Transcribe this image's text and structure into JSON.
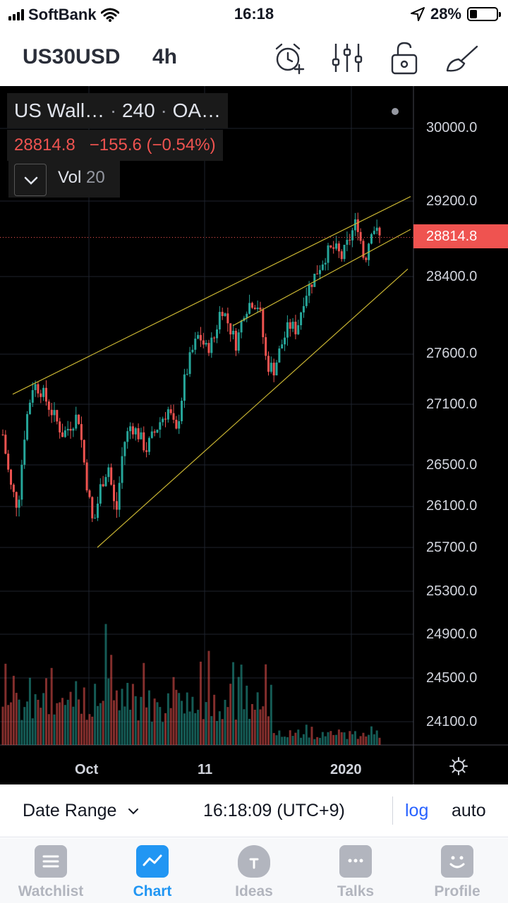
{
  "status_bar": {
    "carrier": "SoftBank",
    "time": "16:18",
    "battery": "28%",
    "battery_level": 0.28
  },
  "toolbar": {
    "symbol": "US30USD",
    "interval": "4h",
    "icons": [
      "alarm-add-icon",
      "indicators-icon",
      "lock-icon",
      "drawing-brush-icon"
    ]
  },
  "legend": {
    "title": "US Wall…",
    "resolution": "240",
    "exchange": "OA…",
    "last_price": "28814.8",
    "change": "−155.6 (−0.54%)",
    "volume_label": "Vol",
    "volume_length": "20"
  },
  "price_axis": {
    "labels": [
      "30000.0",
      "29200.0",
      "28400.0",
      "27600.0",
      "27100.0",
      "26500.0",
      "26100.0",
      "25700.0",
      "25300.0",
      "24900.0",
      "24500.0",
      "24100.0"
    ],
    "last_price_tag": "28814.8"
  },
  "time_axis": {
    "labels": [
      "Oct",
      "11",
      "2020"
    ]
  },
  "range_bar": {
    "date_range": "Date Range",
    "clock": "16:18:09 (UTC+9)",
    "log": "log",
    "auto": "auto"
  },
  "tabs": [
    {
      "label": "Watchlist",
      "icon": "list-icon",
      "active": false
    },
    {
      "label": "Chart",
      "icon": "chart-icon",
      "active": true
    },
    {
      "label": "Ideas",
      "icon": "lightbulb-icon",
      "active": false
    },
    {
      "label": "Talks",
      "icon": "chat-icon",
      "active": false
    },
    {
      "label": "Profile",
      "icon": "smiley-icon",
      "active": false
    }
  ],
  "colors": {
    "up": "#26a69a",
    "down": "#ef5350",
    "trendline": "#c8b432",
    "active_tab": "#2196f3",
    "inactive_tab": "#b2b5be"
  },
  "chart_data": {
    "type": "candlestick",
    "scale": "log",
    "y_axis_ticks": [
      30000,
      29200,
      28400,
      27600,
      27100,
      26500,
      26100,
      25700,
      25300,
      24900,
      24500,
      24100
    ],
    "last_price": 28814.8,
    "close_path": [
      26800,
      26300,
      26100,
      26900,
      27300,
      27250,
      27100,
      26950,
      26800,
      26900,
      27000,
      26400,
      25900,
      26300,
      26500,
      26000,
      26700,
      26900,
      26800,
      26650,
      26800,
      26950,
      27050,
      26800,
      27300,
      27600,
      27800,
      27650,
      27750,
      28100,
      27900,
      27700,
      28050,
      28150,
      28100,
      27500,
      27450,
      27700,
      27900,
      27850,
      28200,
      28350,
      28500,
      28650,
      28700,
      28600,
      28800,
      29000,
      28550,
      28950,
      28814.8
    ],
    "trendlines": [
      {
        "from_value": 27200,
        "to_value": 29250
      },
      {
        "from_value": 25700,
        "to_value": 28480
      },
      {
        "from_value": 27250,
        "to_value": 28900
      }
    ],
    "volume_pattern": [
      0.6,
      0.9,
      0.4,
      0.7,
      1.0,
      0.5,
      0.8,
      0.3,
      0.6,
      0.45,
      0.7,
      0.35
    ]
  }
}
